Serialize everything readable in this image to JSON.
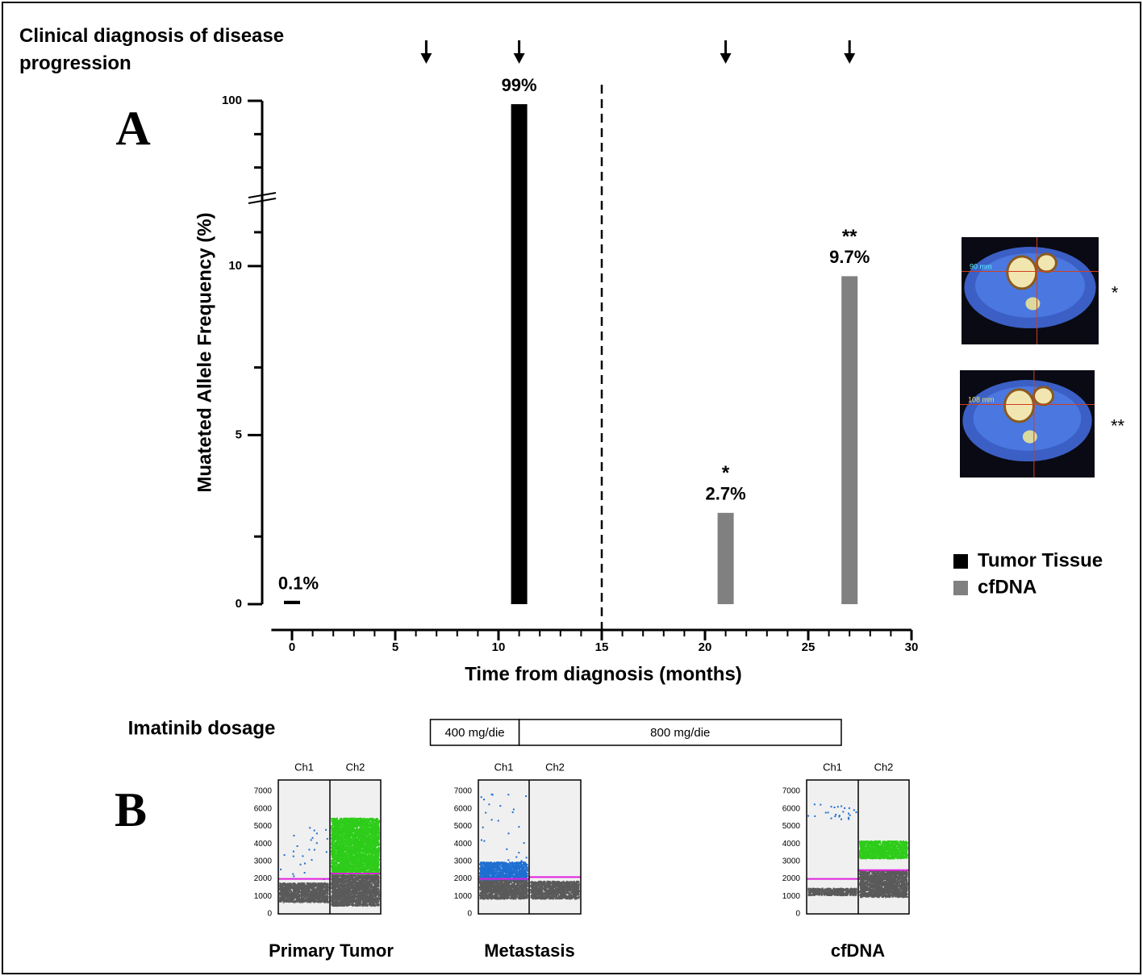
{
  "header": {
    "title": "Clinical diagnosis of disease progression"
  },
  "chart_data": {
    "type": "bar",
    "panel_label": "A",
    "ylabel": "Muateted Allele Frequency (%)",
    "xlabel": "Time from diagnosis (months)",
    "progression_events": [
      6.5,
      11,
      21,
      27
    ],
    "xlim": [
      -1,
      30
    ],
    "xticks": [
      0,
      5,
      10,
      15,
      20,
      25,
      30
    ],
    "xminorticks": [
      1,
      2,
      3,
      4,
      6,
      7,
      8,
      9,
      11,
      12,
      13,
      14,
      16,
      17,
      18,
      19,
      21,
      22,
      23,
      24,
      26,
      27,
      28,
      29
    ],
    "ylim": [
      0,
      12
    ],
    "yticks": [
      0,
      5,
      10
    ],
    "yminorticks": [
      2,
      7,
      11
    ],
    "ylim_upper": [
      70,
      100
    ],
    "yticks_upper": [
      100
    ],
    "yminorticks_upper": [
      80,
      90
    ],
    "vline": 15,
    "legend": "right",
    "series": [
      {
        "name": "Tumor Tissue",
        "color": "#000000",
        "x": [
          0,
          11
        ],
        "values": [
          0.1,
          99
        ],
        "value_labels": [
          "0.1%",
          "99%"
        ],
        "annotations": [
          null,
          null
        ]
      },
      {
        "name": "cfDNA",
        "color": "#808080",
        "x": [
          21,
          27
        ],
        "values": [
          2.7,
          9.7
        ],
        "value_labels": [
          "2.7%",
          "9.7%"
        ],
        "annotations": [
          "*",
          "**"
        ]
      }
    ],
    "dosage": {
      "label": "Imatinib dosage",
      "periods": [
        {
          "label": "400 mg/die",
          "start": 6.7,
          "end": 11
        },
        {
          "label": "800 mg/die",
          "start": 11,
          "end": 26.6
        }
      ]
    }
  },
  "ct_images": [
    {
      "marker": "*",
      "measure": "90 mm"
    },
    {
      "marker": "**",
      "measure": "108 mm"
    }
  ],
  "panel_b": {
    "panel_label": "B",
    "ylim": [
      0,
      7000
    ],
    "yticks": [
      0,
      1000,
      2000,
      3000,
      4000,
      5000,
      6000,
      7000
    ],
    "colors": {
      "grey": "#5a5a5a",
      "green": "#2ecc1a",
      "blue": "#1f6fd1",
      "threshold": "#e020e0"
    },
    "plots": [
      {
        "title": "Primary Tumor",
        "channels": [
          {
            "name": "Ch1",
            "threshold": 2000,
            "clusters": [
              {
                "color": "grey",
                "range": [
                  700,
                  1800
                ]
              },
              {
                "color": "blue",
                "range": [
                  2000,
                  5000
                ],
                "sparse": true
              }
            ]
          },
          {
            "name": "Ch2",
            "threshold": 2300,
            "clusters": [
              {
                "color": "grey",
                "range": [
                  500,
                  2300
                ]
              },
              {
                "color": "green",
                "range": [
                  2300,
                  5500
                ]
              }
            ]
          }
        ]
      },
      {
        "title": "Metastasis",
        "channels": [
          {
            "name": "Ch1",
            "threshold": 2000,
            "clusters": [
              {
                "color": "grey",
                "range": [
                  900,
                  2000
                ]
              },
              {
                "color": "blue",
                "range": [
                  2000,
                  3000
                ]
              },
              {
                "color": "blue",
                "range": [
                  3000,
                  7000
                ],
                "sparse": true
              }
            ]
          },
          {
            "name": "Ch2",
            "threshold": 2100,
            "clusters": [
              {
                "color": "grey",
                "range": [
                  900,
                  1900
                ]
              }
            ]
          }
        ]
      },
      {
        "title": "cfDNA",
        "channels": [
          {
            "name": "Ch1",
            "threshold": 2000,
            "clusters": [
              {
                "color": "grey",
                "range": [
                  1100,
                  1500
                ]
              },
              {
                "color": "blue",
                "range": [
                  5400,
                  6300
                ],
                "sparse": true
              }
            ]
          },
          {
            "name": "Ch2",
            "threshold": 2500,
            "clusters": [
              {
                "color": "grey",
                "range": [
                  1000,
                  2500
                ]
              },
              {
                "color": "green",
                "range": [
                  3200,
                  4200
                ]
              }
            ]
          }
        ]
      }
    ]
  }
}
